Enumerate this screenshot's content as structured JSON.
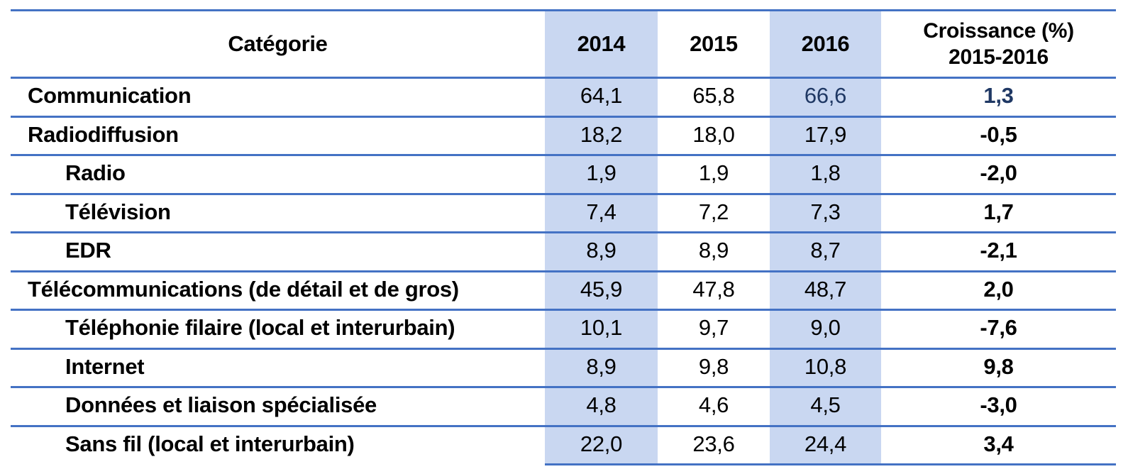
{
  "colors": {
    "rule_blue": "#4472C4",
    "band_blue": "#C9D7F1",
    "accent_navy": "#1F3864",
    "text_black": "#000000"
  },
  "table": {
    "header": {
      "category": "Catégorie",
      "y2014": "2014",
      "y2015": "2015",
      "y2016": "2016",
      "growth_line1": "Croissance (%)",
      "growth_line2": "2015-2016"
    },
    "rows": [
      {
        "category": "Communication",
        "indent": 0,
        "v2014": "64,1",
        "v2015": "65,8",
        "v2016": "66,6",
        "growth": "1,3",
        "accent": true
      },
      {
        "category": "Radiodiffusion",
        "indent": 0,
        "v2014": "18,2",
        "v2015": "18,0",
        "v2016": "17,9",
        "growth": "-0,5",
        "accent": false
      },
      {
        "category": "Radio",
        "indent": 1,
        "v2014": "1,9",
        "v2015": "1,9",
        "v2016": "1,8",
        "growth": "-2,0",
        "accent": false
      },
      {
        "category": "Télévision",
        "indent": 1,
        "v2014": "7,4",
        "v2015": "7,2",
        "v2016": "7,3",
        "growth": "1,7",
        "accent": false
      },
      {
        "category": "EDR",
        "indent": 1,
        "v2014": "8,9",
        "v2015": "8,9",
        "v2016": "8,7",
        "growth": "-2,1",
        "accent": false
      },
      {
        "category": "Télécommunications (de détail et de gros)",
        "indent": 0,
        "v2014": "45,9",
        "v2015": "47,8",
        "v2016": "48,7",
        "growth": "2,0",
        "accent": false
      },
      {
        "category": "Téléphonie filaire (local et interurbain)",
        "indent": 1,
        "v2014": "10,1",
        "v2015": "9,7",
        "v2016": "9,0",
        "growth": "-7,6",
        "accent": false
      },
      {
        "category": "Internet",
        "indent": 1,
        "v2014": "8,9",
        "v2015": "9,8",
        "v2016": "10,8",
        "growth": "9,8",
        "accent": false
      },
      {
        "category": "Données et liaison spécialisée",
        "indent": 1,
        "v2014": "4,8",
        "v2015": "4,6",
        "v2016": "4,5",
        "growth": "-3,0",
        "accent": false
      },
      {
        "category": "Sans fil (local et interurbain)",
        "indent": 1,
        "v2014": "22,0",
        "v2015": "23,6",
        "v2016": "24,4",
        "growth": "3,4",
        "accent": false
      }
    ]
  },
  "chart_data": {
    "type": "table",
    "title": "",
    "columns": [
      "Catégorie",
      "2014",
      "2015",
      "2016",
      "Croissance (%) 2015-2016"
    ],
    "rows": [
      [
        "Communication",
        64.1,
        65.8,
        66.6,
        1.3
      ],
      [
        "Radiodiffusion",
        18.2,
        18.0,
        17.9,
        -0.5
      ],
      [
        "Radio",
        1.9,
        1.9,
        1.8,
        -2.0
      ],
      [
        "Télévision",
        7.4,
        7.2,
        7.3,
        1.7
      ],
      [
        "EDR",
        8.9,
        8.9,
        8.7,
        -2.1
      ],
      [
        "Télécommunications (de détail et de gros)",
        45.9,
        47.8,
        48.7,
        2.0
      ],
      [
        "Téléphonie filaire (local et interurbain)",
        10.1,
        9.7,
        9.0,
        -7.6
      ],
      [
        "Internet",
        8.9,
        9.8,
        10.8,
        9.8
      ],
      [
        "Données et liaison spécialisée",
        4.8,
        4.6,
        4.5,
        -3.0
      ],
      [
        "Sans fil (local et interurbain)",
        22.0,
        23.6,
        24.4,
        3.4
      ]
    ],
    "notes": {
      "decimal_separator": "comma",
      "shaded_columns": [
        "2014",
        "2016"
      ],
      "accent_cells": "Communication row: 2016 value and growth value in dark navy",
      "sub_rows_of_Radiodiffusion": [
        "Radio",
        "Télévision",
        "EDR"
      ],
      "sub_rows_of_Télécommunications": [
        "Téléphonie filaire (local et interurbain)",
        "Internet",
        "Données et liaison spécialisée",
        "Sans fil (local et interurbain)"
      ]
    }
  }
}
